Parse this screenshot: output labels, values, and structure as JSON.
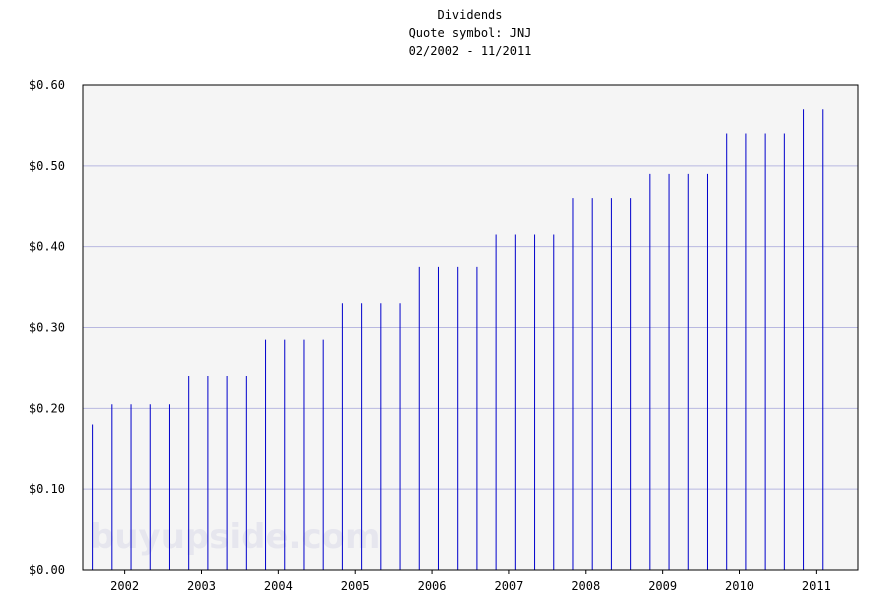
{
  "chart_data": {
    "type": "bar",
    "title": "Dividends",
    "subtitle": "Quote symbol: JNJ",
    "date_range": "02/2002 - 11/2011",
    "watermark": "buyupside.com",
    "ylim": [
      0,
      0.6
    ],
    "y_ticks": [
      "$0.00",
      "$0.10",
      "$0.20",
      "$0.30",
      "$0.40",
      "$0.50",
      "$0.60"
    ],
    "x_tick_labels": [
      "2002",
      "2003",
      "2004",
      "2005",
      "2006",
      "2007",
      "2008",
      "2009",
      "2010",
      "2011"
    ],
    "grid": true,
    "bar_color": "#0000cc",
    "grid_color": "#b8b8e0",
    "plot_background": "#f5f5f5",
    "x": [
      "02/2002",
      "05/2002",
      "08/2002",
      "11/2002",
      "02/2003",
      "05/2003",
      "08/2003",
      "11/2003",
      "02/2004",
      "05/2004",
      "08/2004",
      "11/2004",
      "02/2005",
      "05/2005",
      "08/2005",
      "11/2005",
      "02/2006",
      "05/2006",
      "08/2006",
      "11/2006",
      "02/2007",
      "05/2007",
      "08/2007",
      "11/2007",
      "02/2008",
      "05/2008",
      "08/2008",
      "11/2008",
      "02/2009",
      "05/2009",
      "08/2009",
      "11/2009",
      "02/2010",
      "05/2010",
      "08/2010",
      "11/2010",
      "02/2011",
      "05/2011",
      "08/2011"
    ],
    "values": [
      0.18,
      0.205,
      0.205,
      0.205,
      0.205,
      0.24,
      0.24,
      0.24,
      0.24,
      0.285,
      0.285,
      0.285,
      0.285,
      0.33,
      0.33,
      0.33,
      0.33,
      0.375,
      0.375,
      0.375,
      0.375,
      0.415,
      0.415,
      0.415,
      0.415,
      0.46,
      0.46,
      0.46,
      0.46,
      0.49,
      0.49,
      0.49,
      0.49,
      0.54,
      0.54,
      0.54,
      0.54,
      0.57,
      0.57
    ]
  }
}
